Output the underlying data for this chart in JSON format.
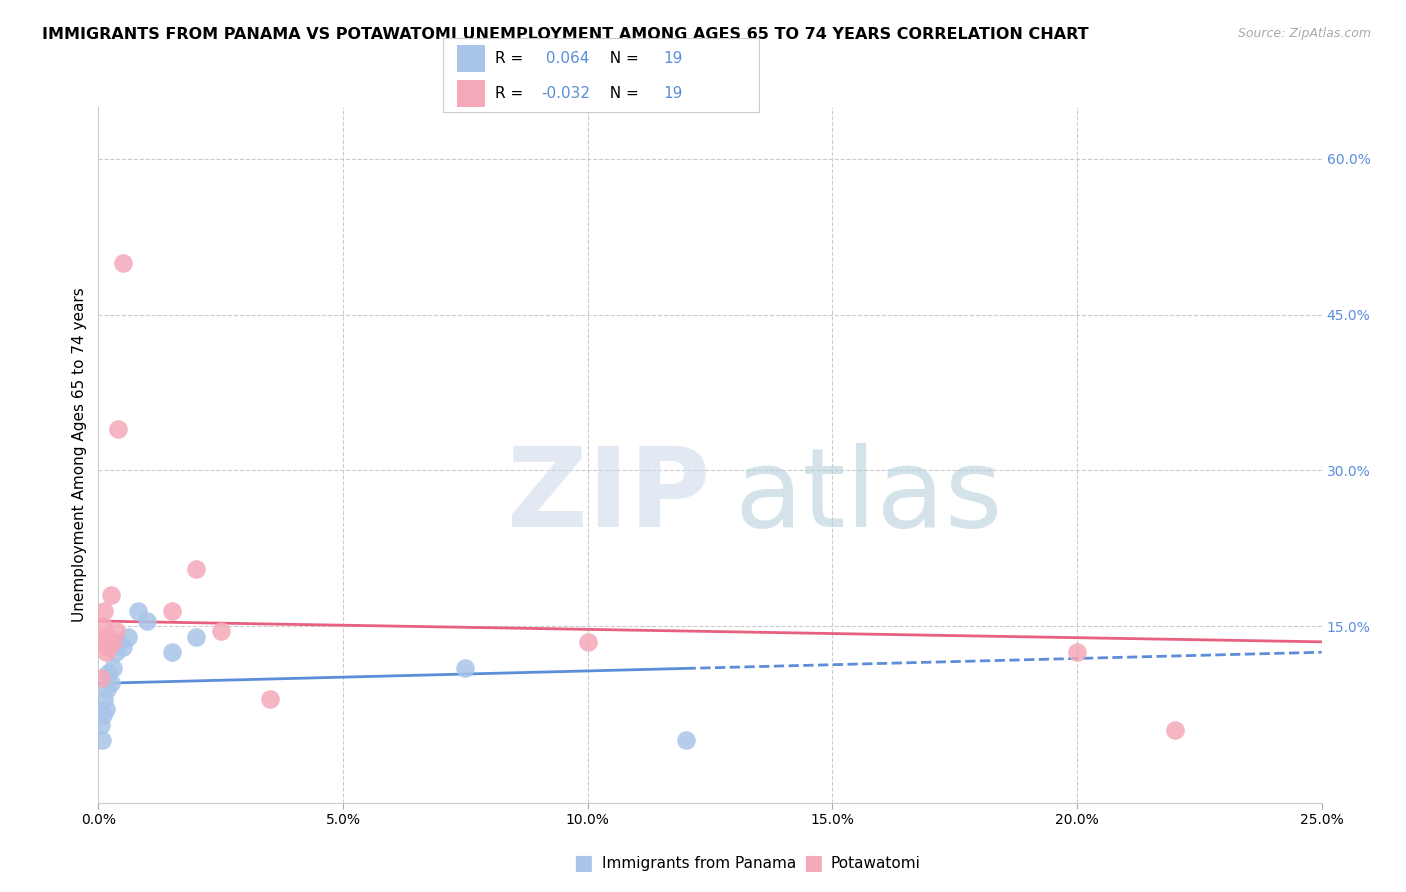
{
  "title": "IMMIGRANTS FROM PANAMA VS POTAWATOMI UNEMPLOYMENT AMONG AGES 65 TO 74 YEARS CORRELATION CHART",
  "source": "Source: ZipAtlas.com",
  "ylabel": "Unemployment Among Ages 65 to 74 years",
  "x_tick_labels": [
    "0.0%",
    "5.0%",
    "10.0%",
    "15.0%",
    "20.0%",
    "25.0%"
  ],
  "x_tick_values": [
    0.0,
    5.0,
    10.0,
    15.0,
    20.0,
    25.0
  ],
  "y_tick_labels": [
    "15.0%",
    "30.0%",
    "45.0%",
    "60.0%"
  ],
  "y_tick_values": [
    15.0,
    30.0,
    45.0,
    60.0
  ],
  "xlim": [
    0.0,
    25.0
  ],
  "ylim": [
    -2.0,
    65.0
  ],
  "blue_color": "#a8c4e8",
  "pink_color": "#f4a8b8",
  "blue_line_color": "#5b8dd9",
  "pink_line_color": "#e86080",
  "blue_R": 0.064,
  "pink_R": -0.032,
  "N": 19,
  "legend_label_blue": "Immigrants from Panama",
  "legend_label_pink": "Potawatomi",
  "blue_x": [
    0.05,
    0.08,
    0.1,
    0.12,
    0.15,
    0.18,
    0.2,
    0.25,
    0.3,
    0.35,
    0.4,
    0.5,
    0.6,
    0.8,
    1.0,
    1.5,
    2.0,
    7.5,
    12.0
  ],
  "blue_y": [
    5.5,
    4.0,
    6.5,
    8.0,
    7.0,
    9.0,
    10.5,
    9.5,
    11.0,
    12.5,
    13.5,
    13.0,
    14.0,
    16.5,
    15.5,
    12.5,
    14.0,
    11.0,
    4.0
  ],
  "pink_x": [
    0.05,
    0.08,
    0.1,
    0.12,
    0.15,
    0.18,
    0.2,
    0.25,
    0.3,
    0.35,
    0.4,
    0.5,
    1.5,
    2.0,
    2.5,
    3.5,
    10.0,
    20.0,
    22.0
  ],
  "pink_y": [
    10.0,
    13.5,
    15.0,
    16.5,
    12.5,
    14.0,
    13.0,
    18.0,
    13.5,
    14.5,
    34.0,
    50.0,
    16.5,
    20.5,
    14.5,
    8.0,
    13.5,
    12.5,
    5.0
  ],
  "blue_trend_x0": 0.0,
  "blue_trend_x1": 25.0,
  "blue_trend_y0": 9.5,
  "blue_trend_y1": 12.5,
  "blue_solid_end_x": 12.0,
  "pink_trend_x0": 0.0,
  "pink_trend_x1": 25.0,
  "pink_trend_y0": 15.5,
  "pink_trend_y1": 13.5,
  "background_color": "#ffffff",
  "grid_color": "#cccccc",
  "title_fontsize": 11.5,
  "axis_label_fontsize": 11,
  "tick_fontsize": 10,
  "tick_color_right": "#5b8dd9",
  "source_color": "#aaaaaa"
}
